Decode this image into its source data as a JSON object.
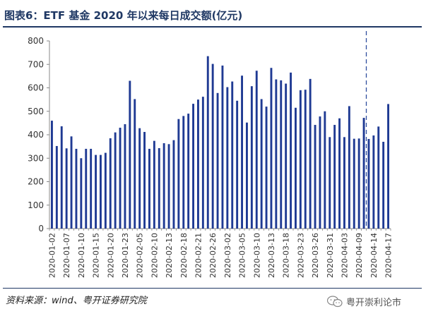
{
  "title": "图表6：ETF 基金 2020 年以来每日成交额(亿元)",
  "source": "资料来源：wind、粤开证券研究院",
  "watermark": {
    "text": "粤开崇利论市",
    "icon": "wechat-icon"
  },
  "colors": {
    "bar": "#1f3a93",
    "title": "#1f3864",
    "marker_line": "#2f4f9f"
  },
  "chart_data": {
    "type": "bar",
    "ylim": [
      0,
      800
    ],
    "yticks": [
      0,
      100,
      200,
      300,
      400,
      500,
      600,
      700,
      800
    ],
    "x_tick_labels": [
      "2020-01-02",
      "2020-01-07",
      "2020-01-10",
      "2020-01-15",
      "2020-01-20",
      "2020-01-23",
      "2020-02-05",
      "2020-02-10",
      "2020-02-13",
      "2020-02-18",
      "2020-02-21",
      "2020-02-26",
      "2020-03-02",
      "2020-03-05",
      "2020-03-10",
      "2020-03-13",
      "2020-03-18",
      "2020-03-23",
      "2020-03-26",
      "2020-03-31",
      "2020-04-03",
      "2020-04-09",
      "2020-04-14",
      "2020-04-17"
    ],
    "values": [
      460,
      352,
      436,
      342,
      393,
      340,
      300,
      340,
      340,
      314,
      314,
      323,
      385,
      410,
      430,
      445,
      630,
      552,
      428,
      412,
      340,
      374,
      343,
      364,
      360,
      377,
      467,
      480,
      490,
      532,
      550,
      562,
      735,
      702,
      578,
      695,
      603,
      627,
      545,
      652,
      452,
      607,
      673,
      552,
      520,
      685,
      636,
      632,
      618,
      665,
      515,
      590,
      592,
      638,
      442,
      478,
      500,
      390,
      442,
      470,
      390,
      522,
      383,
      384,
      472,
      382,
      397,
      435,
      370,
      531
    ],
    "marker_line_after_index": 64,
    "grid": false,
    "legend": "none"
  }
}
